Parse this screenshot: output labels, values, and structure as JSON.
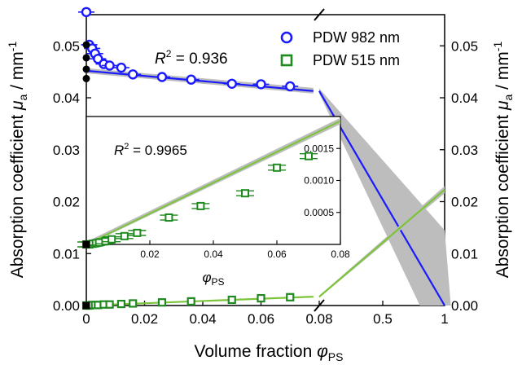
{
  "chart_data": {
    "type": "scatter",
    "ylabel_main": "Absorption coefficient",
    "ylabel_symbol": "μ",
    "ylabel_sub": "a",
    "ylabel_unit": " / mm",
    "ylabel_exp": "-1",
    "xlabel_main": "Volume fraction",
    "xlabel_symbol": "φ",
    "xlabel_sub": "PS",
    "ylim": [
      0,
      0.056
    ],
    "y_ticks": [
      "0.00",
      "0.01",
      "0.02",
      "0.03",
      "0.04",
      "0.05"
    ],
    "y_tick_values": [
      0,
      0.01,
      0.02,
      0.03,
      0.04,
      0.05
    ],
    "x_ticks_left": [
      "0",
      "0.02",
      "0.04",
      "0.06",
      "0.08"
    ],
    "x_tick_values_left": [
      0,
      0.02,
      0.04,
      0.06,
      0.08
    ],
    "x_ticks_right": [
      "0.5",
      "1"
    ],
    "x_tick_values_right": [
      0.5,
      1
    ],
    "axis_break_x": 0.08,
    "legend": [
      {
        "label": "PDW 982 nm",
        "color": "#1a1aff",
        "marker": "circle"
      },
      {
        "label": "PDW 515 nm",
        "color": "#1f8a1f",
        "marker": "square"
      }
    ],
    "annotations": {
      "r2_main_prefix": "R",
      "r2_main_exp": "2",
      "r2_main_value": " = 0.936",
      "r2_inset_prefix": "R",
      "r2_inset_exp": "2",
      "r2_inset_value": " = 0.9965"
    },
    "series": [
      {
        "name": "PDW 982 nm",
        "color": "#1a1aff",
        "x": [
          0,
          0.001,
          0.002,
          0.003,
          0.004,
          0.006,
          0.008,
          0.012,
          0.016,
          0.026,
          0.036,
          0.05,
          0.06,
          0.07
        ],
        "y": [
          0.0565,
          0.0502,
          0.0495,
          0.0485,
          0.0475,
          0.0465,
          0.0462,
          0.0458,
          0.0445,
          0.044,
          0.0435,
          0.0427,
          0.0426,
          0.0422
        ],
        "fit_left": [
          [
            0,
            0.0452
          ],
          [
            0.078,
            0.0413
          ]
        ],
        "fit_right": [
          [
            0.08,
            0.0413
          ],
          [
            1.0,
            0.0
          ]
        ],
        "band_right_upper": [
          [
            0.08,
            0.0418
          ],
          [
            1.0,
            0.0145
          ]
        ],
        "band_right_lower": [
          [
            0.08,
            0.0408
          ],
          [
            0.8,
            0.0
          ]
        ]
      },
      {
        "name": "PDW 515 nm",
        "color": "#1f8a1f",
        "x": [
          0,
          0.001,
          0.002,
          0.003,
          0.004,
          0.006,
          0.008,
          0.012,
          0.016,
          0.026,
          0.036,
          0.05,
          0.06,
          0.07
        ],
        "y": [
          0.0,
          0.0,
          0.0001,
          0.0001,
          0.0001,
          0.0002,
          0.0002,
          0.0003,
          0.0004,
          0.0006,
          0.0008,
          0.0011,
          0.0014,
          0.0016
        ],
        "fit_left": [
          [
            0,
            0.0
          ],
          [
            0.078,
            0.0017
          ]
        ],
        "fit_right": [
          [
            0.08,
            0.0017
          ],
          [
            1.0,
            0.0223
          ]
        ]
      }
    ],
    "black_points": {
      "circles_y": [
        0.0502,
        0.0477,
        0.0455,
        0.0437
      ],
      "square_y_inset_main": 0.0122,
      "bottom_circle_y": 0.0
    },
    "inset": {
      "xlim": [
        0,
        0.08
      ],
      "ylim": [
        0,
        0.002
      ],
      "x_ticks": [
        "0.02",
        "0.04",
        "0.06",
        "0.08"
      ],
      "x_tick_values": [
        0.02,
        0.04,
        0.06,
        0.08
      ],
      "y_ticks": [
        "0.0005",
        "0.0010",
        "0.0015"
      ],
      "y_tick_values": [
        0.0005,
        0.001,
        0.0015
      ],
      "xlabel_symbol": "φ",
      "xlabel_sub": "PS",
      "points_x": [
        0,
        0.001,
        0.002,
        0.003,
        0.004,
        0.006,
        0.008,
        0.012,
        0.016,
        0.026,
        0.036,
        0.05,
        0.06,
        0.07
      ],
      "points_y": [
        0.0,
        0.0,
        1e-05,
        2e-05,
        3e-05,
        5e-05,
        8e-05,
        0.00013,
        0.00018,
        0.00042,
        0.0006,
        0.0008,
        0.0012,
        0.00138
      ],
      "fit": [
        [
          0,
          0.0
        ],
        [
          0.08,
          0.00193
        ]
      ]
    }
  }
}
